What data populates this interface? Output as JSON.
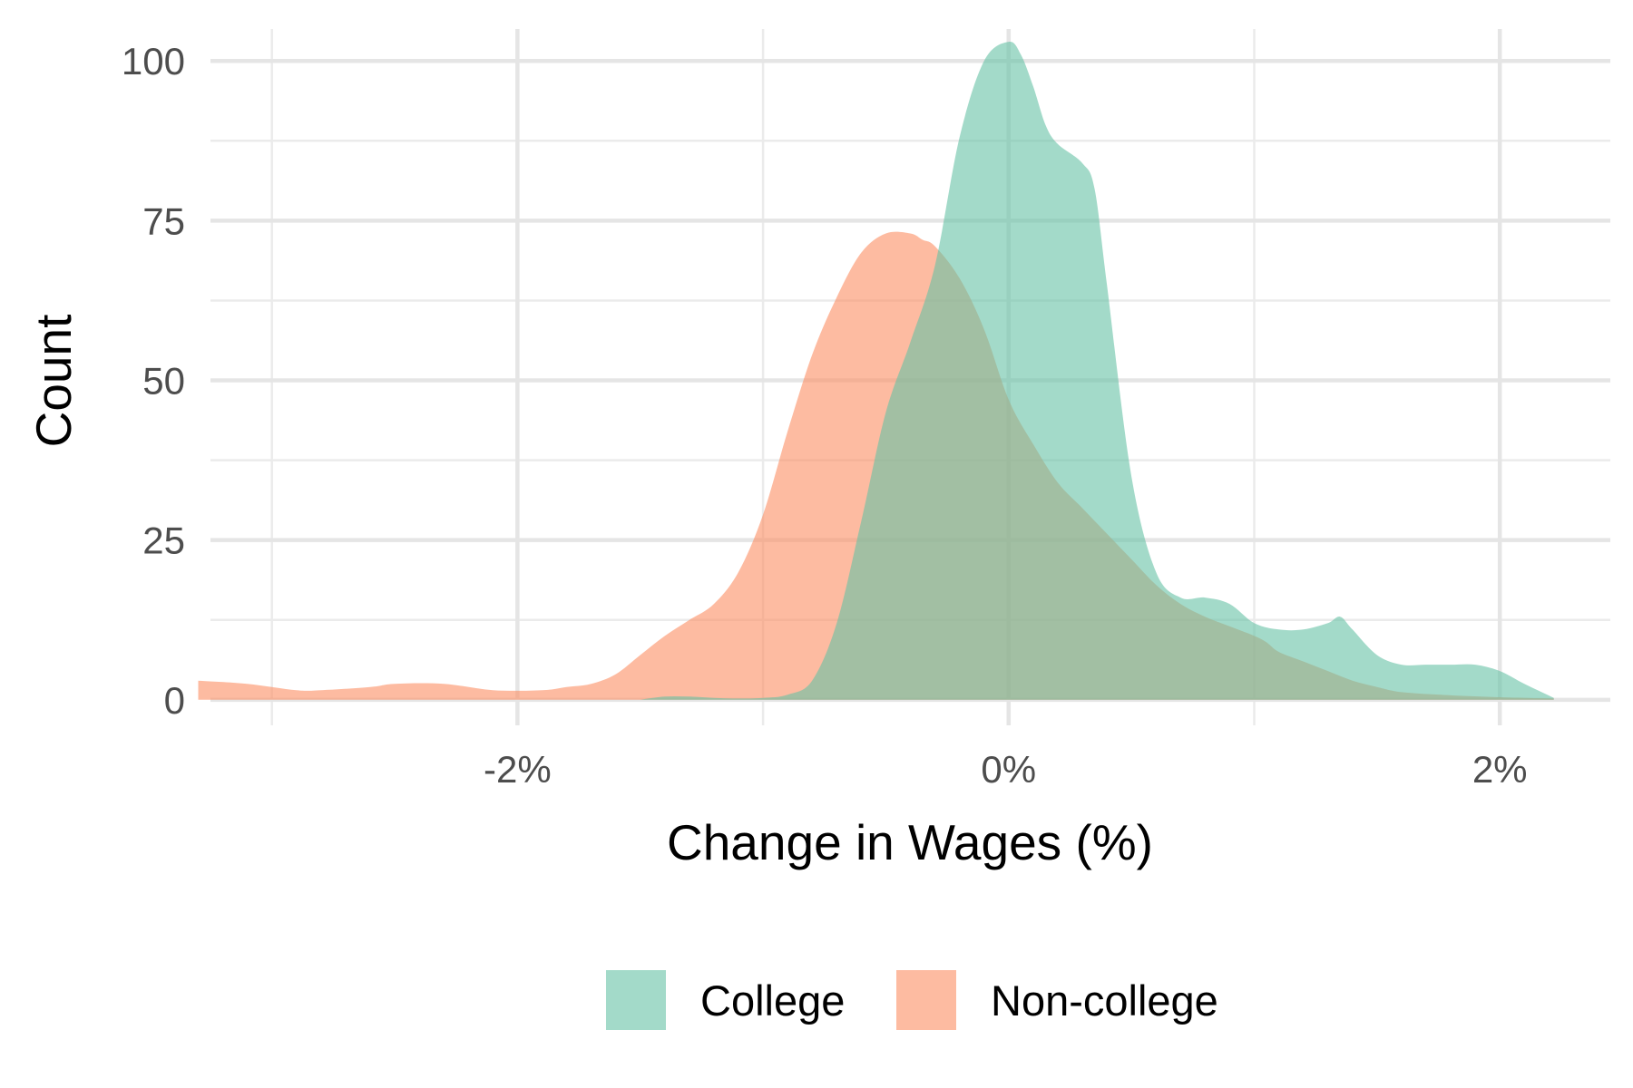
{
  "chart_data": {
    "type": "area",
    "subtype": "density",
    "title": "",
    "xlabel": "Change in Wages (%)",
    "ylabel": "Count",
    "xlim": [
      -3.25,
      2.45
    ],
    "ylim": [
      -4,
      105
    ],
    "x_ticks": [
      {
        "value": -2,
        "label": "-2%"
      },
      {
        "value": 0,
        "label": "0%"
      },
      {
        "value": 2,
        "label": "2%"
      }
    ],
    "x_minor_ticks": [
      -3,
      -1,
      1
    ],
    "y_ticks": [
      {
        "value": 0,
        "label": "0"
      },
      {
        "value": 25,
        "label": "25"
      },
      {
        "value": 50,
        "label": "50"
      },
      {
        "value": 75,
        "label": "75"
      },
      {
        "value": 100,
        "label": "100"
      }
    ],
    "y_minor_ticks": [
      12.5,
      37.5,
      62.5,
      87.5
    ],
    "grid": true,
    "legend": {
      "position": "bottom"
    },
    "series": [
      {
        "name": "College",
        "color": "#66c2a5",
        "opacity": 0.6,
        "x": [
          -1.5,
          -1.4,
          -1.3,
          -1.2,
          -1.1,
          -1.0,
          -0.9,
          -0.8,
          -0.7,
          -0.6,
          -0.5,
          -0.4,
          -0.3,
          -0.2,
          -0.1,
          0.0,
          0.05,
          0.1,
          0.15,
          0.2,
          0.3,
          0.35,
          0.4,
          0.5,
          0.6,
          0.7,
          0.8,
          0.9,
          1.0,
          1.1,
          1.2,
          1.3,
          1.35,
          1.4,
          1.5,
          1.6,
          1.7,
          1.8,
          1.9,
          2.0,
          2.1,
          2.22
        ],
        "y": [
          0,
          0.5,
          0.5,
          0.3,
          0.2,
          0.3,
          0.8,
          3,
          12,
          28,
          45,
          56,
          68,
          88,
          100,
          103,
          101,
          96,
          90,
          87,
          84,
          80,
          65,
          35,
          20,
          16,
          16,
          15,
          12,
          11,
          11,
          12,
          13,
          11,
          7,
          5.5,
          5.5,
          5.5,
          5.5,
          4.5,
          2.5,
          0.3
        ]
      },
      {
        "name": "Non-college",
        "color": "#fc8d62",
        "opacity": 0.6,
        "x": [
          -3.3,
          -3.1,
          -2.9,
          -2.8,
          -2.6,
          -2.5,
          -2.3,
          -2.1,
          -1.9,
          -1.8,
          -1.7,
          -1.6,
          -1.5,
          -1.4,
          -1.3,
          -1.2,
          -1.1,
          -1.0,
          -0.9,
          -0.8,
          -0.7,
          -0.6,
          -0.5,
          -0.4,
          -0.35,
          -0.3,
          -0.2,
          -0.1,
          0.0,
          0.1,
          0.2,
          0.3,
          0.4,
          0.5,
          0.6,
          0.7,
          0.8,
          0.9,
          1.0,
          1.05,
          1.1,
          1.2,
          1.3,
          1.4,
          1.5,
          1.6,
          1.8,
          2.0,
          2.22
        ],
        "y": [
          3,
          2.5,
          1.5,
          1.5,
          2,
          2.5,
          2.5,
          1.5,
          1.5,
          2,
          2.5,
          4,
          7,
          10,
          12.5,
          15,
          20,
          29,
          42,
          54,
          63,
          70,
          73,
          73,
          72,
          71,
          66,
          58,
          47,
          40,
          34,
          30,
          26,
          22,
          18,
          15,
          13,
          11.5,
          10,
          9,
          7.5,
          6,
          4.5,
          3,
          2,
          1.2,
          0.7,
          0.4,
          0.2
        ]
      }
    ]
  }
}
